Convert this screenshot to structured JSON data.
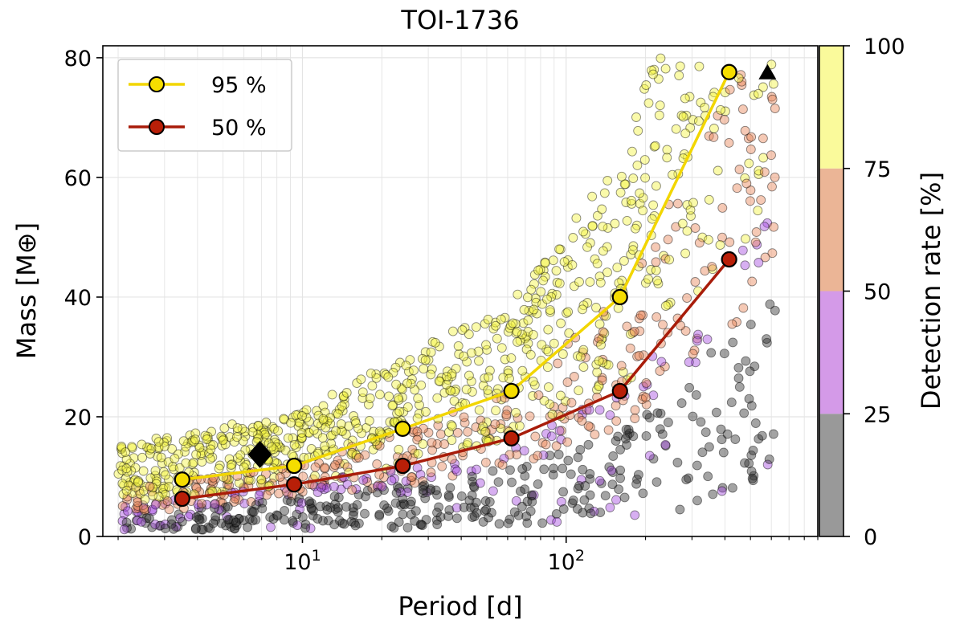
{
  "chart_data": {
    "type": "scatter",
    "title": "TOI-1736",
    "xlabel": "Period [d]",
    "ylabel": "Mass [M⊕]",
    "xscale": "log",
    "xlim": [
      1.75,
      900
    ],
    "ylim": [
      0,
      82
    ],
    "x_ticks": [
      10,
      100
    ],
    "x_tick_labels": [
      "10",
      "1",
      "10",
      "2"
    ],
    "y_ticks": [
      0,
      20,
      40,
      60,
      80
    ],
    "y_tick_labels": [
      "0",
      "20",
      "40",
      "60",
      "80"
    ],
    "grid": true,
    "legend_position": "top-left",
    "colorbar": {
      "label": "Detection rate [%]",
      "ticks": [
        "0",
        "25",
        "50",
        "75",
        "100"
      ],
      "bands": [
        {
          "from": 0,
          "to": 25,
          "color": "#999999"
        },
        {
          "from": 25,
          "to": 50,
          "color": "#d49ae8"
        },
        {
          "from": 50,
          "to": 75,
          "color": "#ebb596"
        },
        {
          "from": 75,
          "to": 100,
          "color": "#fafa9b"
        }
      ]
    },
    "series": [
      {
        "name": "95 %",
        "color": "#f2d600",
        "marker_fill": "#f5dd00",
        "x": [
          3.5,
          9.3,
          24,
          62,
          160,
          415
        ],
        "y": [
          9.5,
          11.8,
          18.0,
          24.3,
          40.0,
          77.6
        ]
      },
      {
        "name": "50 %",
        "color": "#a81c0a",
        "marker_fill": "#b81f08",
        "x": [
          3.5,
          9.3,
          24,
          62,
          160,
          415
        ],
        "y": [
          6.3,
          8.7,
          11.8,
          16.4,
          24.3,
          46.3
        ]
      }
    ],
    "special_markers": [
      {
        "shape": "diamond",
        "x": 6.9,
        "y": 13.7,
        "color": "#000000"
      },
      {
        "shape": "triangle",
        "x": 580,
        "y": 77.6,
        "color": "#000000"
      }
    ],
    "scatter_categories": {
      "detected_95_plus": "#f5f542",
      "detected_50_75": "#e8875a",
      "detected_25_50": "#a64de0",
      "detected_below_25": "#333333"
    }
  }
}
